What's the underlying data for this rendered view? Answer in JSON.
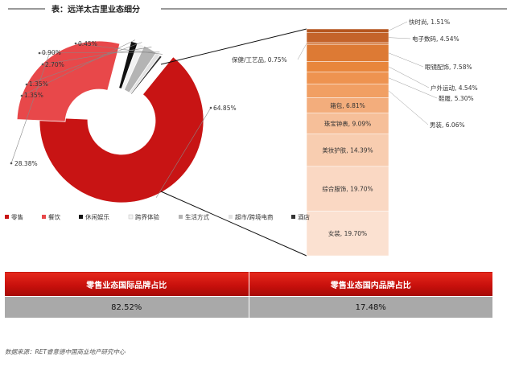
{
  "title": "表：远洋太古里业态细分",
  "chart_data": [
    {
      "type": "pie",
      "variant": "donut",
      "slices": [
        {
          "name": "零售",
          "value": 64.85,
          "color": "#c81414"
        },
        {
          "name": "餐饮",
          "value": 28.38,
          "color": "#e8484a"
        },
        {
          "name": "休闲娱乐",
          "value": 1.35,
          "color": "#111111"
        },
        {
          "name": "跨界体验",
          "value": 1.35,
          "color": "#f2f2f2"
        },
        {
          "name": "生活方式",
          "value": 2.7,
          "color": "#b4b4b4"
        },
        {
          "name": "超市/跨境电商",
          "value": 0.9,
          "color": "#e2e2e2"
        },
        {
          "name": "酒店",
          "value": 0.45,
          "color": "#333333"
        }
      ],
      "value_labels": [
        "64.85%",
        "28.38%",
        "1.35%",
        "1.35%",
        "2.70%",
        "0.90%",
        "0.45%"
      ],
      "legend": [
        "零售",
        "餐饮",
        "休闲娱乐",
        "跨界体验",
        "生活方式",
        "超市/跨境电商",
        "酒店"
      ],
      "legend_position": "bottom"
    },
    {
      "type": "bar",
      "variant": "stacked-column",
      "breakdown_of": "零售",
      "segments": [
        {
          "name": "快时尚",
          "value": 1.51,
          "label": "快时尚, 1.51%",
          "color": "#b5561f"
        },
        {
          "name": "电子数码",
          "value": 4.54,
          "label": "电子数码, 4.54%",
          "color": "#c4632a"
        },
        {
          "name": "保健/工艺品",
          "value": 0.75,
          "label": "保健/工艺品, 0.75%",
          "color": "#d06e2f"
        },
        {
          "name": "眼镜配饰",
          "value": 7.58,
          "label": "眼镜配饰, 7.58%",
          "color": "#dd7a34"
        },
        {
          "name": "户外运动",
          "value": 4.54,
          "label": "户外运动, 4.54%",
          "color": "#e8863c"
        },
        {
          "name": "鞋履",
          "value": 5.3,
          "label": "鞋履, 5.30%",
          "color": "#ee9350"
        },
        {
          "name": "男装",
          "value": 6.06,
          "label": "男装, 6.06%",
          "color": "#f19f63"
        },
        {
          "name": "箱包",
          "value": 6.81,
          "label": "箱包, 6.81%",
          "color": "#f3ad7c"
        },
        {
          "name": "珠宝钟表",
          "value": 9.09,
          "label": "珠宝钟表, 9.09%",
          "color": "#f6bf99"
        },
        {
          "name": "美妆护肤",
          "value": 14.39,
          "label": "美妆护肤, 14.39%",
          "color": "#f8cdb0"
        },
        {
          "name": "综合服饰",
          "value": 19.7,
          "label": "综合服饰, 19.70%",
          "color": "#fad8c3"
        },
        {
          "name": "女装",
          "value": 19.7,
          "label": "女装, 19.70%",
          "color": "#fbe1d1"
        }
      ]
    },
    {
      "type": "table",
      "headers": [
        "零售业态国际品牌占比",
        "零售业态国内品牌占比"
      ],
      "values": [
        "82.52%",
        "17.48%"
      ]
    }
  ],
  "source": "数据来源：RET睿意德中国商业地产研究中心"
}
